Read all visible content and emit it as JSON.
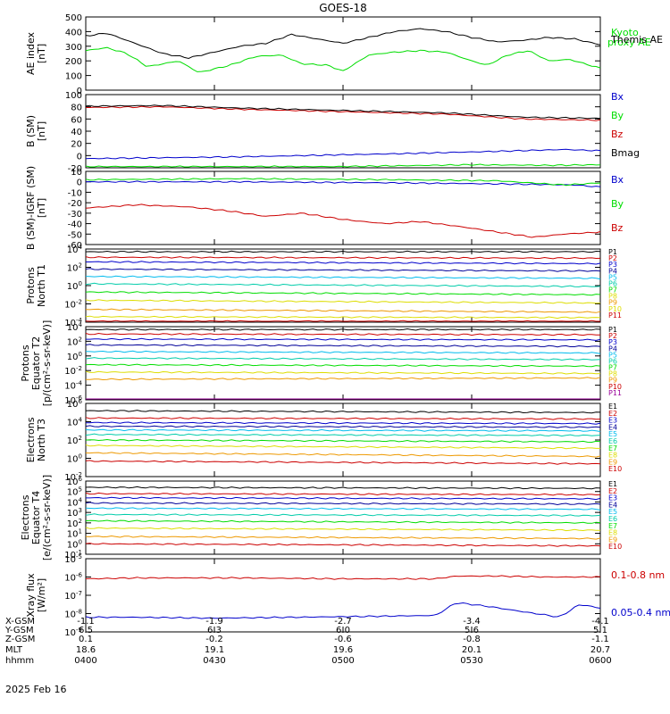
{
  "title": "GOES-18",
  "date": "2025 Feb 16",
  "colors": {
    "black": "#000000",
    "green": "#00dd00",
    "blue": "#0000cc",
    "red": "#cc0000",
    "navy": "#000099",
    "cyan": "#00bbee",
    "teal": "#00ccaa",
    "yellow": "#dddd00",
    "orange": "#ee9900",
    "purple": "#990099",
    "gray": "#666666"
  },
  "ephemeris": {
    "labels": [
      "X-GSM",
      "Y-GSM",
      "Z-GSM",
      "MLT",
      "hhmm"
    ],
    "rows": [
      [
        "-1.1",
        "-1.9",
        "-2.7",
        "-3.4",
        "-4.1"
      ],
      [
        "6.5",
        "6.3",
        "6.0",
        "5.6",
        "5.1"
      ],
      [
        "0.1",
        "-0.2",
        "-0.6",
        "-0.8",
        "-1.1"
      ],
      [
        "18.6",
        "19.1",
        "19.6",
        "20.1",
        "20.7"
      ],
      [
        "0400",
        "0430",
        "0500",
        "0530",
        "0600"
      ]
    ]
  },
  "chart_data": [
    {
      "type": "line",
      "ylabel": [
        "AE index",
        "[nT]"
      ],
      "ylim": [
        0,
        500
      ],
      "yticks": [
        "0",
        "100",
        "200",
        "300",
        "400",
        "500"
      ],
      "series": [
        {
          "name": "Kyoto proxy AE",
          "color": "#00dd00",
          "x": [
            0,
            0.04,
            0.08,
            0.12,
            0.18,
            0.22,
            0.28,
            0.33,
            0.38,
            0.42,
            0.47,
            0.5,
            0.55,
            0.6,
            0.65,
            0.7,
            0.75,
            0.78,
            0.82,
            0.86,
            0.9,
            0.94,
            0.97,
            1.0
          ],
          "values": [
            270,
            290,
            250,
            160,
            200,
            120,
            170,
            230,
            240,
            180,
            170,
            130,
            240,
            260,
            270,
            260,
            200,
            170,
            240,
            270,
            200,
            210,
            180,
            150
          ]
        },
        {
          "name": "Themis AE",
          "color": "#000000",
          "x": [
            0,
            0.04,
            0.08,
            0.15,
            0.2,
            0.25,
            0.3,
            0.35,
            0.4,
            0.45,
            0.5,
            0.55,
            0.6,
            0.65,
            0.7,
            0.75,
            0.8,
            0.85,
            0.9,
            0.95,
            1.0
          ],
          "values": [
            370,
            390,
            340,
            250,
            220,
            260,
            300,
            320,
            380,
            350,
            320,
            360,
            400,
            420,
            400,
            360,
            330,
            340,
            360,
            350,
            310
          ]
        }
      ]
    },
    {
      "type": "line",
      "ylabel": [
        "B (SM)",
        "[nT]"
      ],
      "ylim": [
        -20,
        100
      ],
      "yticks": [
        "-20",
        "0",
        "20",
        "40",
        "60",
        "80",
        "100"
      ],
      "series": [
        {
          "name": "Bx",
          "color": "#0000cc",
          "x": [
            0,
            0.3,
            0.6,
            0.8,
            0.93,
            1.0
          ],
          "values": [
            -5,
            -2,
            3,
            7,
            10,
            8
          ]
        },
        {
          "name": "By",
          "color": "#00dd00",
          "x": [
            0,
            0.5,
            0.75,
            0.9,
            1.0
          ],
          "values": [
            -18,
            -18,
            -15,
            -16,
            -15
          ]
        },
        {
          "name": "Bz",
          "color": "#cc0000",
          "x": [
            0,
            0.15,
            0.3,
            0.5,
            0.7,
            0.85,
            1.0
          ],
          "values": [
            79,
            80,
            76,
            72,
            68,
            60,
            58
          ]
        },
        {
          "name": "Bmag",
          "color": "#000000",
          "x": [
            0,
            0.15,
            0.3,
            0.5,
            0.7,
            0.85,
            1.0
          ],
          "values": [
            81,
            82,
            78,
            74,
            70,
            63,
            61
          ]
        }
      ]
    },
    {
      "type": "line",
      "ylabel": [
        "B (SM)-IGRF (SM)",
        "[nT]"
      ],
      "ylim": [
        -60,
        10
      ],
      "yticks": [
        "-60",
        "-50",
        "-40",
        "-30",
        "-20",
        "-10",
        "0",
        "10"
      ],
      "series": [
        {
          "name": "Bx",
          "color": "#0000cc",
          "x": [
            0,
            0.3,
            0.6,
            0.8,
            0.95,
            1.0
          ],
          "values": [
            0,
            0,
            -1,
            -2,
            -3,
            -5
          ]
        },
        {
          "name": "By",
          "color": "#00dd00",
          "x": [
            0,
            0.3,
            0.6,
            0.8,
            0.93,
            1.0
          ],
          "values": [
            2,
            3,
            2,
            1,
            -3,
            -1
          ]
        },
        {
          "name": "Bz",
          "color": "#cc0000",
          "x": [
            0,
            0.1,
            0.2,
            0.28,
            0.35,
            0.42,
            0.5,
            0.58,
            0.65,
            0.73,
            0.8,
            0.87,
            0.93,
            1.0
          ],
          "values": [
            -25,
            -22,
            -24,
            -28,
            -33,
            -30,
            -36,
            -40,
            -38,
            -43,
            -48,
            -53,
            -50,
            -48
          ]
        }
      ]
    },
    {
      "type": "line",
      "ylog": true,
      "ylabel": [
        "Protons",
        "North T1"
      ],
      "ylim_exp": [
        -4,
        4
      ],
      "yticks_exp": [
        -4,
        -2,
        0,
        2,
        4
      ],
      "series": [
        {
          "name": "P1",
          "color": "#000000",
          "values": [
            3.7,
            3.7
          ]
        },
        {
          "name": "P2",
          "color": "#cc0000",
          "values": [
            3.1,
            3.0
          ]
        },
        {
          "name": "P3",
          "color": "#0000cc",
          "values": [
            2.6,
            2.4
          ]
        },
        {
          "name": "P4",
          "color": "#000099",
          "values": [
            1.8,
            1.6
          ]
        },
        {
          "name": "P5",
          "color": "#00bbee",
          "values": [
            1.0,
            0.8
          ]
        },
        {
          "name": "P6",
          "color": "#00ccaa",
          "values": [
            0.2,
            -0.1
          ]
        },
        {
          "name": "P7",
          "color": "#00dd00",
          "values": [
            -0.7,
            -1.0
          ]
        },
        {
          "name": "P8",
          "color": "#dddd00",
          "values": [
            -1.6,
            -1.9
          ]
        },
        {
          "name": "P9",
          "color": "#ee9900",
          "values": [
            -2.6,
            -2.9
          ]
        },
        {
          "name": "P10",
          "color": "#dddd00",
          "values": [
            -3.4,
            -3.5
          ]
        },
        {
          "name": "P11",
          "color": "#cc0000",
          "values": [
            -3.9,
            -3.9
          ]
        }
      ]
    },
    {
      "type": "line",
      "ylog": true,
      "ylabel": [
        "Protons",
        "Equator T2",
        "[p/(cm²-s-sr-keV)]"
      ],
      "ylim_exp": [
        -6,
        4
      ],
      "yticks_exp": [
        -6,
        -4,
        -2,
        0,
        2,
        4
      ],
      "series": [
        {
          "name": "P1",
          "color": "#000000",
          "values": [
            3.6,
            3.6
          ]
        },
        {
          "name": "P2",
          "color": "#cc0000",
          "values": [
            3.0,
            2.9
          ]
        },
        {
          "name": "P3",
          "color": "#0000cc",
          "values": [
            2.3,
            2.2
          ]
        },
        {
          "name": "P4",
          "color": "#000099",
          "values": [
            1.5,
            1.3
          ]
        },
        {
          "name": "P5",
          "color": "#00bbee",
          "values": [
            0.6,
            0.4
          ]
        },
        {
          "name": "P6",
          "color": "#00ccaa",
          "values": [
            -0.3,
            -0.5
          ]
        },
        {
          "name": "P7",
          "color": "#00dd00",
          "values": [
            -1.2,
            -1.4
          ]
        },
        {
          "name": "P8",
          "color": "#dddd00",
          "values": [
            -2.2,
            -2.4
          ]
        },
        {
          "name": "P9",
          "color": "#ee9900",
          "values": [
            -3.2,
            -3.0
          ]
        },
        {
          "name": "P10",
          "color": "#cc0000",
          "values": [
            -7,
            -7
          ]
        },
        {
          "name": "P11",
          "color": "#990099",
          "values": [
            -7,
            -7
          ]
        }
      ]
    },
    {
      "type": "line",
      "ylog": true,
      "ylabel": [
        "Electrons",
        "North T3"
      ],
      "ylim_exp": [
        -2,
        6
      ],
      "yticks_exp": [
        -2,
        0,
        2,
        4,
        6
      ],
      "series": [
        {
          "name": "E1",
          "color": "#000000",
          "values": [
            5.2,
            5.0
          ]
        },
        {
          "name": "E2",
          "color": "#cc0000",
          "values": [
            4.4,
            4.3
          ]
        },
        {
          "name": "E3",
          "color": "#0000cc",
          "values": [
            3.9,
            3.8
          ]
        },
        {
          "name": "E4",
          "color": "#000099",
          "values": [
            3.5,
            3.4
          ]
        },
        {
          "name": "E5",
          "color": "#00bbee",
          "values": [
            3.1,
            3.0
          ]
        },
        {
          "name": "E6",
          "color": "#00ccaa",
          "values": [
            2.6,
            2.5
          ]
        },
        {
          "name": "E7",
          "color": "#00dd00",
          "values": [
            2.0,
            1.8
          ]
        },
        {
          "name": "E8",
          "color": "#dddd00",
          "values": [
            1.4,
            1.1
          ]
        },
        {
          "name": "E9",
          "color": "#ee9900",
          "values": [
            0.6,
            0.2
          ]
        },
        {
          "name": "E10",
          "color": "#cc0000",
          "values": [
            -0.3,
            -0.6
          ]
        }
      ]
    },
    {
      "type": "line",
      "ylog": true,
      "ylabel": [
        "Electrons",
        "Equator T4",
        "[e/(cm²-s-sr-keV)]"
      ],
      "ylim_exp": [
        -1,
        6
      ],
      "yticks_exp": [
        -1,
        0,
        1,
        2,
        3,
        4,
        5,
        6
      ],
      "series": [
        {
          "name": "E1",
          "color": "#000000",
          "values": [
            5.4,
            5.3
          ]
        },
        {
          "name": "E2",
          "color": "#cc0000",
          "values": [
            4.8,
            4.7
          ]
        },
        {
          "name": "E3",
          "color": "#0000cc",
          "values": [
            4.4,
            4.3
          ]
        },
        {
          "name": "E4",
          "color": "#000099",
          "values": [
            3.9,
            3.8
          ]
        },
        {
          "name": "E5",
          "color": "#00bbee",
          "values": [
            3.4,
            3.3
          ]
        },
        {
          "name": "E6",
          "color": "#00ccaa",
          "values": [
            2.8,
            2.7
          ]
        },
        {
          "name": "E7",
          "color": "#00dd00",
          "values": [
            2.2,
            2.0
          ]
        },
        {
          "name": "E8",
          "color": "#dddd00",
          "values": [
            1.5,
            1.3
          ]
        },
        {
          "name": "E9",
          "color": "#ee9900",
          "values": [
            0.7,
            0.5
          ]
        },
        {
          "name": "E10",
          "color": "#cc0000",
          "values": [
            0.0,
            -0.2
          ]
        }
      ]
    },
    {
      "type": "line",
      "ylog": true,
      "ylabel": [
        "Xray flux",
        "[W/m²]"
      ],
      "ylim_exp": [
        -9,
        -5
      ],
      "yticks_exp": [
        -9,
        -8,
        -7,
        -6,
        -5
      ],
      "series": [
        {
          "name": "0.1-0.8 nm",
          "color": "#cc0000",
          "x": [
            0,
            0.1,
            0.3,
            0.5,
            0.68,
            0.72,
            0.8,
            0.9,
            1.0
          ],
          "values": [
            -6.1,
            -6.05,
            -6.05,
            -6.1,
            -6.1,
            -5.95,
            -5.95,
            -6.0,
            -6.0
          ]
        },
        {
          "name": "0.05-0.4 nm",
          "color": "#0000cc",
          "x": [
            0,
            0.1,
            0.25,
            0.4,
            0.55,
            0.68,
            0.72,
            0.78,
            0.85,
            0.9,
            0.92,
            0.96,
            1.0
          ],
          "values": [
            -8.2,
            -8.2,
            -8.25,
            -8.2,
            -8.15,
            -8.1,
            -7.4,
            -7.6,
            -7.9,
            -8.1,
            -8.2,
            -7.5,
            -7.7
          ]
        }
      ]
    }
  ]
}
